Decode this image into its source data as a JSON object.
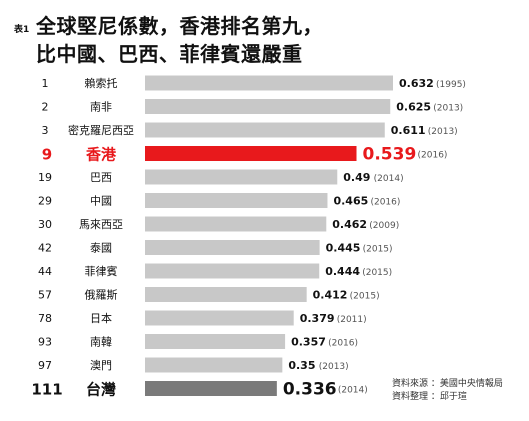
{
  "title": {
    "table_tag": "表1",
    "line1": "全球堅尼係數，香港排名第九，",
    "line2": "比中國、巴西、菲律賓還嚴重"
  },
  "source": {
    "line1": "資料來源 ：美國中央情報局",
    "line2": "資料整理 ：邱于瑄"
  },
  "colors": {
    "bar_default": "#c8c8c8",
    "bar_highlight": "#e8191c",
    "bar_hk_taiwan": "#7a7a7a",
    "highlight_text": "#e8191c"
  },
  "chart_data": {
    "type": "bar",
    "orientation": "horizontal",
    "ranks": [
      "1",
      "2",
      "3",
      "9",
      "19",
      "29",
      "30",
      "42",
      "44",
      "57",
      "78",
      "93",
      "97",
      "111"
    ],
    "categories": [
      "賴索托",
      "南非",
      "密克羅尼西亞",
      "香港",
      "巴西",
      "中國",
      "馬來西亞",
      "泰國",
      "菲律賓",
      "俄羅斯",
      "日本",
      "南韓",
      "澳門",
      "台灣"
    ],
    "values": [
      0.632,
      0.625,
      0.611,
      0.539,
      0.49,
      0.465,
      0.462,
      0.445,
      0.444,
      0.412,
      0.379,
      0.357,
      0.35,
      0.336
    ],
    "value_labels": [
      "0.632",
      "0.625",
      "0.611",
      "0.539",
      "0.49",
      "0.465",
      "0.462",
      "0.445",
      "0.444",
      "0.412",
      "0.379",
      "0.357",
      "0.35",
      "0.336"
    ],
    "years": [
      "(1995)",
      "(2013)",
      "(2013)",
      "(2016)",
      "(2014)",
      "(2016)",
      "(2009)",
      "(2015)",
      "(2015)",
      "(2015)",
      "(2011)",
      "(2016)",
      "(2013)",
      "(2014)"
    ],
    "styles": [
      "normal",
      "normal",
      "normal",
      "highlight",
      "normal",
      "normal",
      "normal",
      "normal",
      "normal",
      "normal",
      "normal",
      "normal",
      "normal",
      "taiwan"
    ],
    "xlim": [
      0,
      0.632
    ]
  }
}
